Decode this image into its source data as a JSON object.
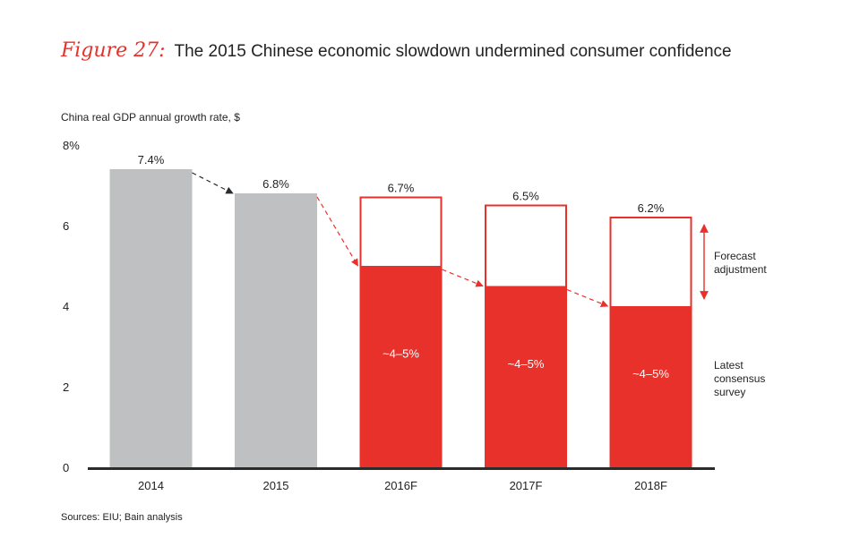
{
  "figure": {
    "label": "Figure 27:",
    "title": "The 2015 Chinese economic slowdown undermined consumer confidence"
  },
  "subtitle": "China real GDP annual growth rate, $",
  "source": "Sources: EIU; Bain analysis",
  "colors": {
    "accent": "#e8312b",
    "grey_bar": "#bfc0c2",
    "axis": "#2b2b2b",
    "text": "#222222"
  },
  "chart_data": {
    "type": "bar",
    "title": "The 2015 Chinese economic slowdown undermined consumer confidence",
    "ylabel": "China real GDP annual growth rate, $",
    "xlabel": "",
    "ylim": [
      0,
      8
    ],
    "yticks": [
      0,
      2,
      4,
      6,
      8
    ],
    "ytick_labels": [
      "0",
      "2",
      "4",
      "6",
      "8%"
    ],
    "categories": [
      "2014",
      "2015",
      "2016F",
      "2017F",
      "2018F"
    ],
    "actual": {
      "values": [
        7.4,
        6.8,
        null,
        null,
        null
      ],
      "labels": [
        "7.4%",
        "6.8%",
        "",
        "",
        ""
      ]
    },
    "forecast": {
      "values": [
        null,
        null,
        6.7,
        6.5,
        6.2
      ],
      "labels": [
        "",
        "",
        "6.7%",
        "6.5%",
        "6.2%"
      ]
    },
    "consensus": {
      "values": [
        null,
        null,
        5.0,
        4.5,
        4.0
      ],
      "labels": [
        "",
        "",
        "~4–5%",
        "~4–5%",
        "~4–5%"
      ]
    },
    "annotations": {
      "forecast_adjustment": [
        "Forecast",
        "adjustment"
      ],
      "latest_consensus": [
        "Latest",
        "consensus",
        "survey"
      ]
    },
    "grid": false
  }
}
